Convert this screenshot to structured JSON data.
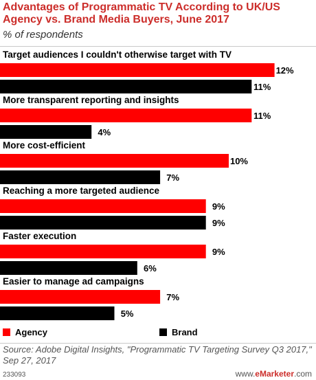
{
  "header": {
    "title": "Advantages of Programmatic TV According to UK/US Agency vs. Brand Media Buyers, June 2017",
    "subtitle": "% of respondents"
  },
  "chart_data": {
    "type": "bar",
    "orientation": "horizontal",
    "categories": [
      "Target audiences I couldn't otherwise target with TV",
      "More transparent reporting and insights",
      "More cost-efficient",
      "Reaching a more targeted audience",
      "Faster execution",
      "Easier to manage ad campaigns"
    ],
    "series": [
      {
        "name": "Agency",
        "values": [
          12,
          11,
          10,
          9,
          9,
          7
        ],
        "labels": [
          "12%",
          "11%",
          "10%",
          "9%",
          "9%",
          "7%"
        ],
        "color": "#ff0000"
      },
      {
        "name": "Brand",
        "values": [
          11,
          4,
          7,
          9,
          6,
          5
        ],
        "labels": [
          "11%",
          "4%",
          "7%",
          "9%",
          "6%",
          "5%"
        ],
        "color": "#000000"
      }
    ],
    "xlim": [
      0,
      12
    ],
    "legend": "bottom-left"
  },
  "legend": {
    "agency_label": "Agency",
    "brand_label": "Brand",
    "agency_color": "#ff0000",
    "brand_color": "#000000"
  },
  "footer": {
    "source": "Source: Adobe Digital Insights, \"Programmatic TV Targeting Survey Q3 2017,\" Sep 27, 2017",
    "chart_id": "233093",
    "brand_prefix": "www.",
    "brand_name": "eMarketer",
    "brand_suffix": ".com"
  }
}
